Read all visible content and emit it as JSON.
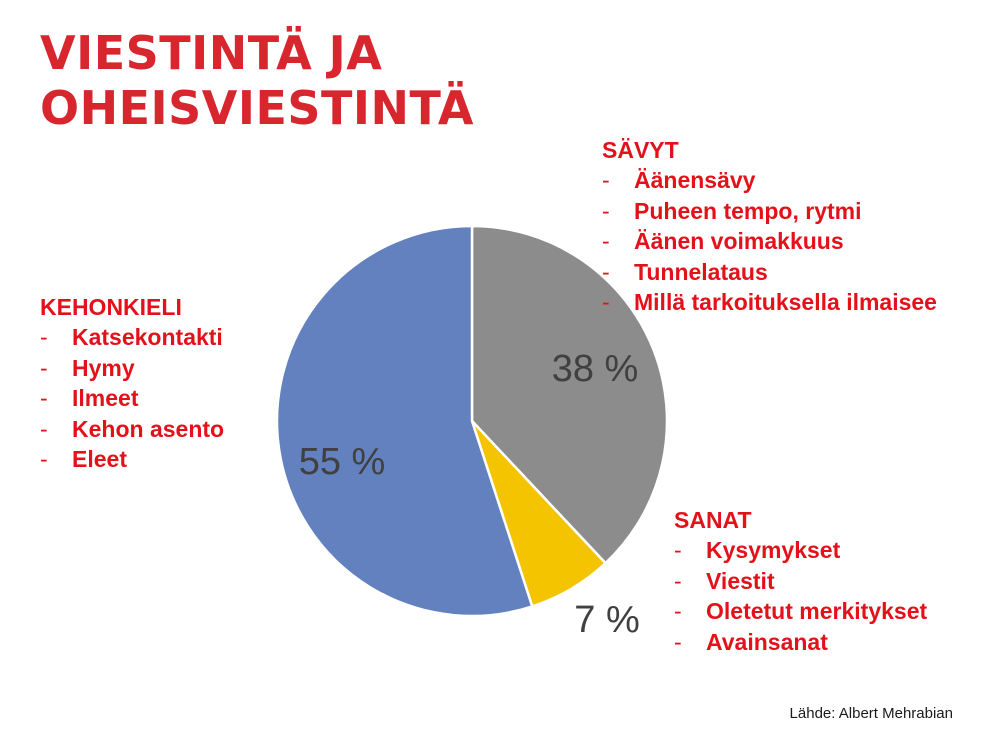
{
  "title": {
    "line1": "VIESTINTÄ JA",
    "line2": "OHEISVIESTINTÄ"
  },
  "groups": {
    "kehonkieli": {
      "heading": "KEHONKIELI",
      "items": [
        "Katsekontakti",
        "Hymy",
        "Ilmeet",
        "Kehon asento",
        "Eleet"
      ]
    },
    "savyt": {
      "heading": "SÄVYT",
      "items": [
        "Äänensävy",
        "Puheen tempo, rytmi",
        "Äänen voimakkuus",
        "Tunnelataus",
        "Millä tarkoituksella ilmaisee"
      ]
    },
    "sanat": {
      "heading": "SANAT",
      "items": [
        "Kysymykset",
        "Viestit",
        "Oletetut merkitykset",
        "Avainsanat"
      ]
    }
  },
  "bullet": "-",
  "source": "Lähde: Albert Mehrabian",
  "chart_data": {
    "type": "pie",
    "title": "",
    "start": "12 o'clock, clockwise",
    "slices": [
      {
        "label": "SÄVYT",
        "value": 38,
        "value_label": "38 %",
        "color": "#8c8c8c"
      },
      {
        "label": "SANAT",
        "value": 7,
        "value_label": "7 %",
        "color": "#f5c400"
      },
      {
        "label": "KEHONKIELI",
        "value": 55,
        "value_label": "55 %",
        "color": "#6381bf"
      }
    ]
  }
}
